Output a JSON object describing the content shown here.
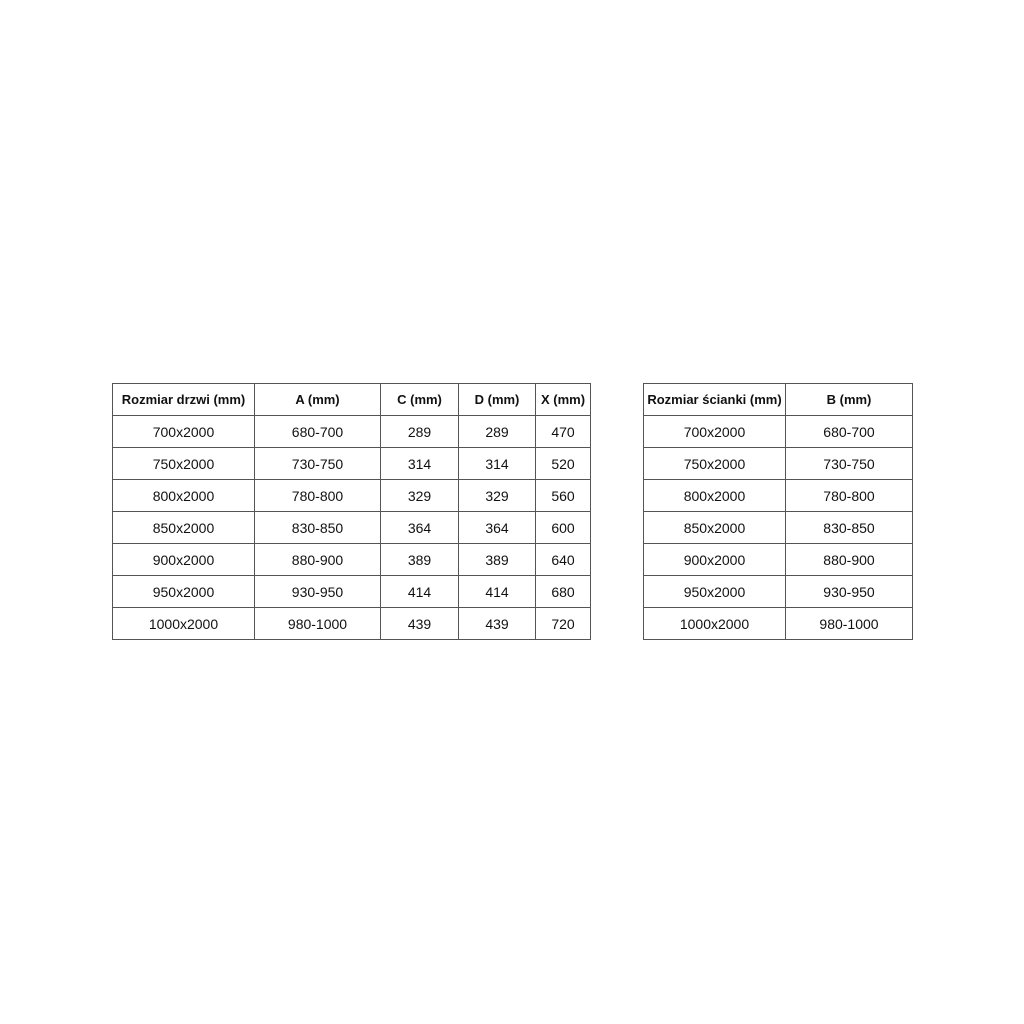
{
  "door_table": {
    "headers": [
      "Rozmiar drzwi (mm)",
      "A (mm)",
      "C (mm)",
      "D (mm)",
      "X (mm)"
    ],
    "rows": [
      [
        "700x2000",
        "680-700",
        "289",
        "289",
        "470"
      ],
      [
        "750x2000",
        "730-750",
        "314",
        "314",
        "520"
      ],
      [
        "800x2000",
        "780-800",
        "329",
        "329",
        "560"
      ],
      [
        "850x2000",
        "830-850",
        "364",
        "364",
        "600"
      ],
      [
        "900x2000",
        "880-900",
        "389",
        "389",
        "640"
      ],
      [
        "950x2000",
        "930-950",
        "414",
        "414",
        "680"
      ],
      [
        "1000x2000",
        "980-1000",
        "439",
        "439",
        "720"
      ]
    ]
  },
  "wall_table": {
    "headers": [
      "Rozmiar ścianki (mm)",
      "B (mm)"
    ],
    "rows": [
      [
        "700x2000",
        "680-700"
      ],
      [
        "750x2000",
        "730-750"
      ],
      [
        "800x2000",
        "780-800"
      ],
      [
        "850x2000",
        "830-850"
      ],
      [
        "900x2000",
        "880-900"
      ],
      [
        "950x2000",
        "930-950"
      ],
      [
        "1000x2000",
        "980-1000"
      ]
    ]
  }
}
